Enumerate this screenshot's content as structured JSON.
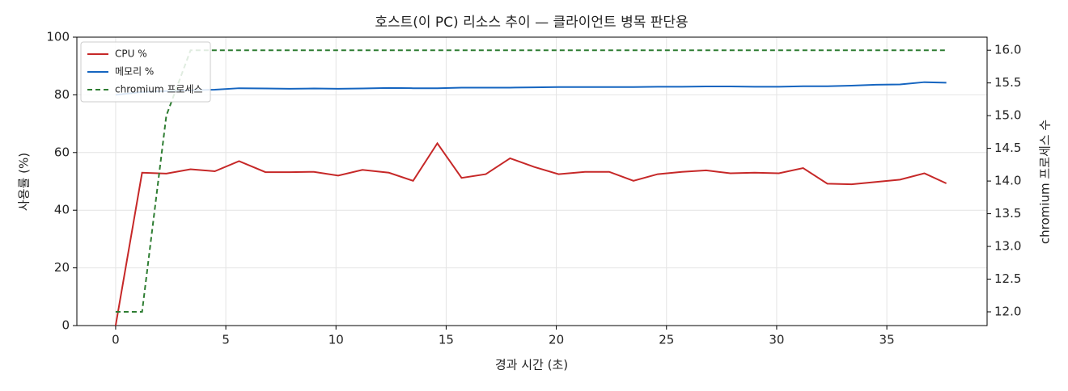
{
  "chart_data": {
    "type": "line",
    "title": "호스트(이 PC) 리소스 추이 — 클라이언트 병목 판단용",
    "xlabel": "경과 시간 (초)",
    "ylabel": "사용률 (%)",
    "y2label": "chromium 프로세스 수",
    "x": [
      0,
      1.2,
      2.3,
      3.4,
      4.5,
      5.6,
      6.8,
      7.9,
      9.0,
      10.1,
      11.2,
      12.4,
      13.5,
      14.6,
      15.7,
      16.8,
      17.9,
      19.0,
      20.1,
      21.3,
      22.4,
      23.5,
      24.6,
      25.7,
      26.8,
      27.9,
      29.0,
      30.1,
      31.2,
      32.3,
      33.4,
      34.5,
      35.6,
      36.7,
      37.7
    ],
    "series": [
      {
        "name": "CPU %",
        "color": "#c62828",
        "linestyle": "solid",
        "values": [
          0,
          53,
          52.7,
          54.2,
          53.5,
          57,
          53.2,
          53.2,
          53.3,
          52,
          54,
          53,
          50.2,
          63.2,
          51.2,
          52.5,
          58,
          55,
          52.5,
          53.3,
          53.3,
          50.2,
          52.5,
          53.3,
          53.8,
          52.8,
          53,
          52.8,
          54.6,
          49.2,
          49,
          49.8,
          50.6,
          52.8,
          49.3
        ]
      },
      {
        "name": "메모리 %",
        "color": "#1565c0",
        "linestyle": "solid",
        "values": [
          80,
          81,
          81.3,
          81.6,
          81.8,
          82.3,
          82.2,
          82.1,
          82.2,
          82.1,
          82.2,
          82.4,
          82.3,
          82.3,
          82.5,
          82.5,
          82.5,
          82.6,
          82.7,
          82.7,
          82.7,
          82.7,
          82.8,
          82.8,
          82.9,
          82.9,
          82.8,
          82.8,
          83,
          83,
          83.2,
          83.5,
          83.6,
          84.4,
          84.2
        ]
      },
      {
        "name": "chromium 프로세스",
        "color": "#2e7d32",
        "linestyle": "dashed",
        "axis": "y2",
        "values": [
          12,
          12,
          15,
          16,
          16,
          16,
          16,
          16,
          16,
          16,
          16,
          16,
          16,
          16,
          16,
          16,
          16,
          16,
          16,
          16,
          16,
          16,
          16,
          16,
          16,
          16,
          16,
          16,
          16,
          16,
          16,
          16,
          16,
          16,
          16
        ]
      }
    ],
    "xlim": [
      -1.76,
      39.55
    ],
    "xticks": [
      0,
      5,
      10,
      15,
      20,
      25,
      30,
      35
    ],
    "ylim": [
      0,
      100
    ],
    "yticks": [
      0,
      20,
      40,
      60,
      80,
      100
    ],
    "y2lim": [
      11.79,
      16.2
    ],
    "y2ticks": [
      {
        "value": 12,
        "label": "12.0"
      },
      {
        "value": 12.5,
        "label": "12.5"
      },
      {
        "value": 13,
        "label": "13.0"
      },
      {
        "value": 13.5,
        "label": "13.5"
      },
      {
        "value": 14,
        "label": "14.0"
      },
      {
        "value": 14.5,
        "label": "14.5"
      },
      {
        "value": 15,
        "label": "15.0"
      },
      {
        "value": 15.5,
        "label": "15.5"
      },
      {
        "value": 16,
        "label": "16.0"
      }
    ],
    "grid": true,
    "legend": "upper left"
  }
}
